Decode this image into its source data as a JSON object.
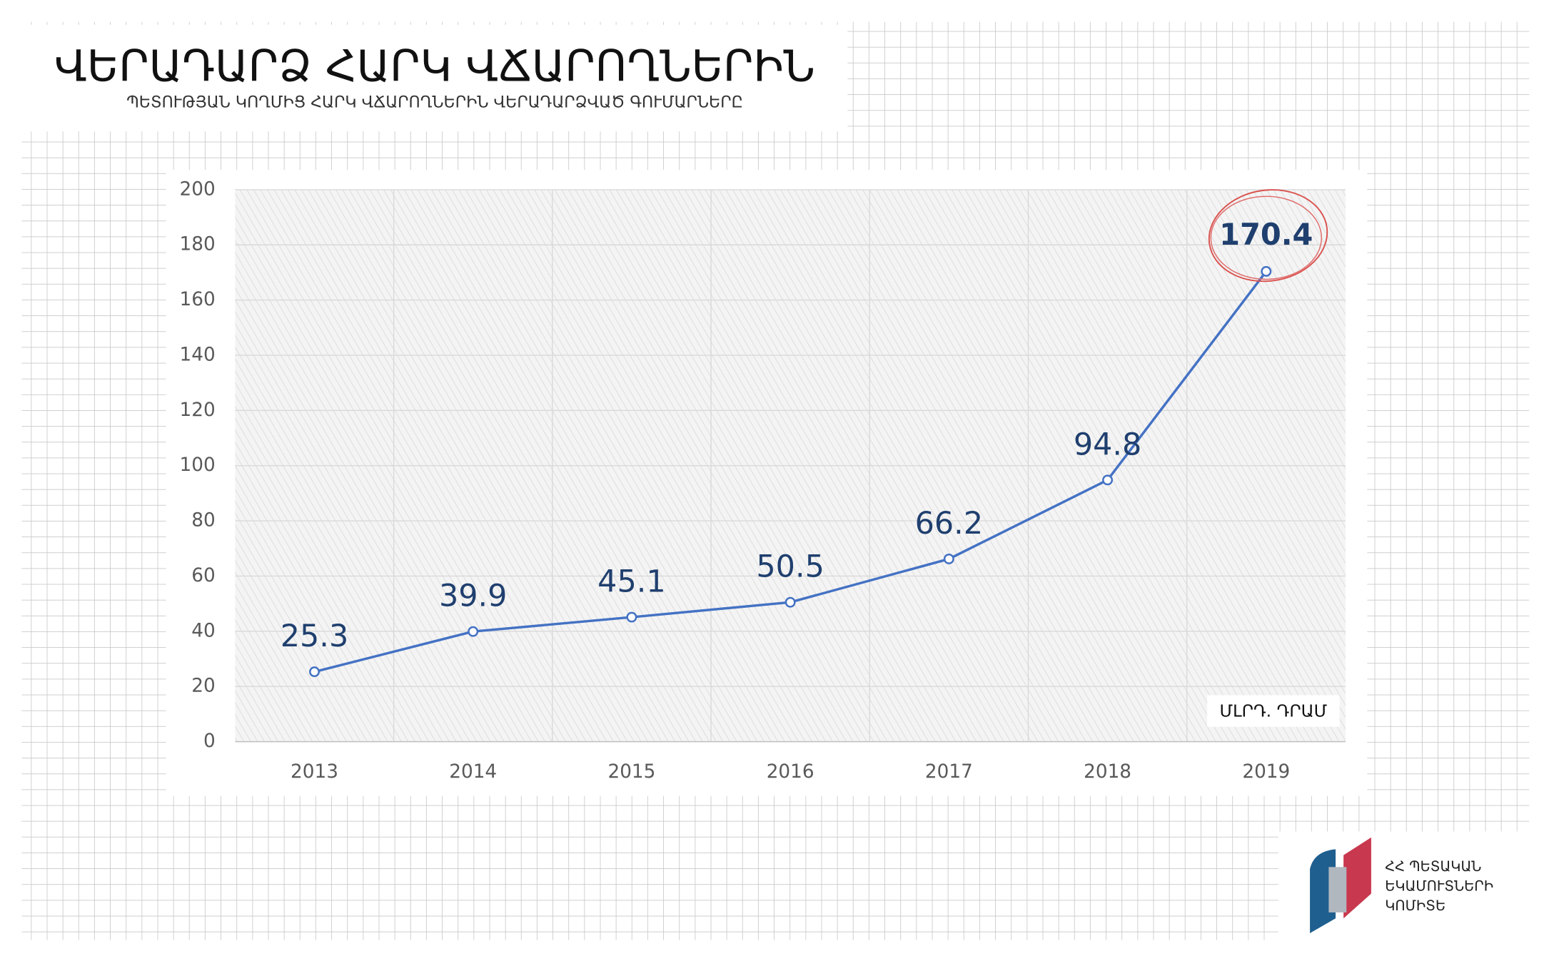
{
  "title": "ՎԵՐԱԴԱՐՁ ՀԱՐԿ ՎՃԱՐՈՂՆԵՐԻՆ",
  "subtitle": "ՊԵՏՈՒԹՅԱՆ ԿՈՂՄԻՑ ՀԱՐԿ ՎՃԱՐՈՂՆԵՐԻՆ ՎԵՐԱԴԱՐՁՎԱԾ ԳՈՒՄԱՐՆԵՐԸ",
  "logo": {
    "lines": [
      "ՀՀ ՊԵՏԱԿԱՆ",
      "ԵԿԱՄՈՒՏՆԵՐԻ",
      "ԿՈՄԻՏԵ"
    ]
  },
  "chart_data": {
    "type": "line",
    "categories": [
      "2013",
      "2014",
      "2015",
      "2016",
      "2017",
      "2018",
      "2019"
    ],
    "series": [
      {
        "name": "ՄԼՐԴ. ԴՐԱՄ",
        "color": "#4472c4",
        "values": [
          25.3,
          39.9,
          45.1,
          50.5,
          66.2,
          94.8,
          170.4
        ]
      }
    ],
    "ylim": [
      0,
      200
    ],
    "yticks": [
      0,
      20,
      40,
      60,
      80,
      100,
      120,
      140,
      160,
      180,
      200
    ],
    "grid": true
  }
}
